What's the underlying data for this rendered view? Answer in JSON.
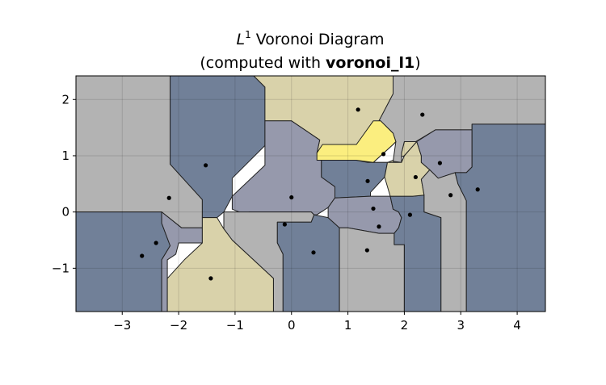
{
  "chart_data": {
    "type": "voronoi",
    "title": {
      "line1_italic": "L",
      "line1_sup": "1",
      "line1_rest": " Voronoi Diagram",
      "line2_prefix": "(computed with ",
      "line2_bold": "voronoi_l1",
      "line2_suffix": ")"
    },
    "xlim": [
      -3.82,
      4.5
    ],
    "ylim": [
      -1.77,
      2.42
    ],
    "xticks": [
      {
        "value": -3,
        "label": "−3"
      },
      {
        "value": -2,
        "label": "−2"
      },
      {
        "value": -1,
        "label": "−1"
      },
      {
        "value": 0,
        "label": "0"
      },
      {
        "value": 1,
        "label": "1"
      },
      {
        "value": 2,
        "label": "2"
      },
      {
        "value": 3,
        "label": "3"
      },
      {
        "value": 4,
        "label": "4"
      }
    ],
    "yticks": [
      {
        "value": -1,
        "label": "−1"
      },
      {
        "value": 0,
        "label": "0"
      },
      {
        "value": 1,
        "label": "1"
      },
      {
        "value": 2,
        "label": "2"
      }
    ],
    "grid": true,
    "colors": {
      "gray": "#b3b3b3",
      "dark_blue": "#718098",
      "slate": "#9699ac",
      "khaki": "#d9d2aa",
      "yellow": "#fbee7f",
      "edge": "#222222",
      "point": "#000000"
    },
    "sites": [
      {
        "x": 1.18,
        "y": 1.82
      },
      {
        "x": 2.32,
        "y": 1.73
      },
      {
        "x": 1.63,
        "y": 1.03
      },
      {
        "x": 2.63,
        "y": 0.87
      },
      {
        "x": 2.2,
        "y": 0.62
      },
      {
        "x": 3.3,
        "y": 0.4
      },
      {
        "x": 2.82,
        "y": 0.3
      },
      {
        "x": -1.52,
        "y": 0.83
      },
      {
        "x": -2.17,
        "y": 0.25
      },
      {
        "x": 0.0,
        "y": 0.26
      },
      {
        "x": 1.35,
        "y": 0.55
      },
      {
        "x": 1.45,
        "y": 0.06
      },
      {
        "x": 2.1,
        "y": -0.05
      },
      {
        "x": -0.12,
        "y": -0.22
      },
      {
        "x": 1.55,
        "y": -0.26
      },
      {
        "x": -2.4,
        "y": -0.55
      },
      {
        "x": -2.65,
        "y": -0.78
      },
      {
        "x": 0.39,
        "y": -0.72
      },
      {
        "x": 1.34,
        "y": -0.68
      },
      {
        "x": -1.43,
        "y": -1.18
      }
    ],
    "cells": [
      {
        "color": "gray",
        "polygon": [
          [
            -3.82,
            2.42
          ],
          [
            -2.15,
            2.42
          ],
          [
            -2.15,
            0.85
          ],
          [
            -1.58,
            0.22
          ],
          [
            -1.58,
            -0.28
          ],
          [
            -1.95,
            -0.28
          ],
          [
            -2.3,
            0.0
          ],
          [
            -3.82,
            0.0
          ]
        ]
      },
      {
        "color": "dark_blue",
        "polygon": [
          [
            -2.15,
            2.42
          ],
          [
            -0.67,
            2.42
          ],
          [
            -0.47,
            2.22
          ],
          [
            -0.47,
            1.18
          ],
          [
            -1.05,
            0.6
          ],
          [
            -1.05,
            0.28
          ],
          [
            -1.2,
            0.0
          ],
          [
            -1.32,
            -0.1
          ],
          [
            -1.58,
            -0.1
          ],
          [
            -1.58,
            0.22
          ],
          [
            -2.15,
            0.85
          ]
        ]
      },
      {
        "color": "khaki",
        "polygon": [
          [
            -0.67,
            2.42
          ],
          [
            1.8,
            2.42
          ],
          [
            1.8,
            2.1
          ],
          [
            1.55,
            1.62
          ],
          [
            1.58,
            1.62
          ],
          [
            1.8,
            1.4
          ],
          [
            1.85,
            1.25
          ],
          [
            1.8,
            1.2
          ],
          [
            1.45,
            0.88
          ],
          [
            1.65,
            0.88
          ],
          [
            1.95,
            0.88
          ],
          [
            1.95,
            1.05
          ],
          [
            2.0,
            1.25
          ],
          [
            2.22,
            1.25
          ],
          [
            2.0,
            1.0
          ],
          [
            1.7,
            0.88
          ],
          [
            1.35,
            0.88
          ],
          [
            1.15,
            0.92
          ],
          [
            0.45,
            0.92
          ],
          [
            0.45,
            1.05
          ],
          [
            0.5,
            1.28
          ],
          [
            0.0,
            1.62
          ],
          [
            -0.47,
            1.62
          ],
          [
            -0.47,
            2.22
          ]
        ]
      },
      {
        "color": "gray",
        "polygon": [
          [
            1.8,
            2.42
          ],
          [
            4.5,
            2.42
          ],
          [
            4.5,
            1.56
          ],
          [
            3.2,
            1.56
          ],
          [
            3.2,
            1.46
          ],
          [
            2.55,
            1.46
          ],
          [
            2.2,
            1.25
          ],
          [
            2.0,
            1.25
          ],
          [
            1.95,
            1.05
          ],
          [
            1.95,
            0.88
          ],
          [
            1.8,
            0.9
          ],
          [
            1.85,
            1.25
          ],
          [
            1.8,
            1.4
          ],
          [
            1.58,
            1.62
          ],
          [
            1.55,
            1.62
          ],
          [
            1.8,
            2.1
          ]
        ]
      },
      {
        "color": "dark_blue",
        "polygon": [
          [
            -3.82,
            0.0
          ],
          [
            -2.3,
            0.0
          ],
          [
            -2.3,
            -0.2
          ],
          [
            -2.15,
            -0.6
          ],
          [
            -2.3,
            -0.85
          ],
          [
            -2.3,
            -1.77
          ],
          [
            -3.82,
            -1.77
          ]
        ]
      },
      {
        "color": "slate",
        "polygon": [
          [
            -2.3,
            0.0
          ],
          [
            -1.95,
            -0.28
          ],
          [
            -1.58,
            -0.28
          ],
          [
            -1.58,
            -0.55
          ],
          [
            -2.0,
            -0.55
          ],
          [
            -2.05,
            -0.75
          ],
          [
            -2.2,
            -0.85
          ],
          [
            -2.2,
            -1.77
          ],
          [
            -2.3,
            -1.77
          ],
          [
            -2.3,
            -0.85
          ],
          [
            -2.15,
            -0.6
          ],
          [
            -2.3,
            -0.2
          ]
        ]
      },
      {
        "color": "slate",
        "polygon": [
          [
            -0.47,
            1.62
          ],
          [
            0.0,
            1.62
          ],
          [
            0.5,
            1.28
          ],
          [
            0.45,
            1.05
          ],
          [
            0.53,
            0.95
          ],
          [
            0.53,
            0.62
          ],
          [
            0.77,
            0.45
          ],
          [
            0.77,
            0.25
          ],
          [
            0.65,
            0.08
          ],
          [
            0.45,
            -0.05
          ],
          [
            0.4,
            -0.05
          ],
          [
            0.35,
            0.0
          ],
          [
            -0.75,
            0.0
          ],
          [
            -0.8,
            -0.05
          ],
          [
            -1.05,
            0.05
          ],
          [
            -1.05,
            0.28
          ],
          [
            -0.47,
            0.83
          ]
        ]
      },
      {
        "color": "gray",
        "polygon": [
          [
            -1.2,
            0.0
          ],
          [
            -0.75,
            0.0
          ],
          [
            0.35,
            0.0
          ],
          [
            0.4,
            -0.05
          ],
          [
            0.35,
            -0.18
          ],
          [
            -0.25,
            -0.18
          ],
          [
            -0.25,
            -0.55
          ],
          [
            -0.15,
            -0.75
          ],
          [
            -0.15,
            -1.77
          ],
          [
            -0.32,
            -1.77
          ],
          [
            -0.32,
            -1.18
          ],
          [
            -0.6,
            -0.92
          ],
          [
            -1.05,
            -0.5
          ],
          [
            -1.2,
            -0.3
          ]
        ]
      },
      {
        "color": "khaki",
        "polygon": [
          [
            -1.58,
            -0.1
          ],
          [
            -1.32,
            -0.1
          ],
          [
            -1.2,
            -0.3
          ],
          [
            -1.05,
            -0.5
          ],
          [
            -0.6,
            -0.92
          ],
          [
            -0.32,
            -1.18
          ],
          [
            -0.32,
            -1.77
          ],
          [
            -2.2,
            -1.77
          ],
          [
            -2.2,
            -1.18
          ],
          [
            -1.9,
            -0.85
          ],
          [
            -1.58,
            -0.55
          ]
        ]
      },
      {
        "color": "dark_blue",
        "polygon": [
          [
            0.4,
            -0.05
          ],
          [
            0.65,
            -0.1
          ],
          [
            0.85,
            -0.28
          ],
          [
            0.85,
            -1.77
          ],
          [
            -0.15,
            -1.77
          ],
          [
            -0.15,
            -0.75
          ],
          [
            -0.25,
            -0.55
          ],
          [
            -0.25,
            -0.18
          ],
          [
            0.35,
            -0.18
          ]
        ]
      },
      {
        "color": "dark_blue",
        "polygon": [
          [
            0.53,
            0.95
          ],
          [
            1.15,
            0.92
          ],
          [
            1.35,
            0.88
          ],
          [
            1.7,
            0.88
          ],
          [
            1.65,
            0.62
          ],
          [
            1.4,
            0.35
          ],
          [
            1.4,
            0.28
          ],
          [
            0.77,
            0.25
          ],
          [
            0.77,
            0.45
          ],
          [
            0.53,
            0.62
          ]
        ]
      },
      {
        "color": "yellow",
        "polygon": [
          [
            0.45,
            1.05
          ],
          [
            0.45,
            0.92
          ],
          [
            1.15,
            0.92
          ],
          [
            1.45,
            0.88
          ],
          [
            1.8,
            1.2
          ],
          [
            1.85,
            1.25
          ],
          [
            1.8,
            1.4
          ],
          [
            1.58,
            1.62
          ],
          [
            1.45,
            1.62
          ],
          [
            1.15,
            1.2
          ],
          [
            0.55,
            1.2
          ]
        ]
      },
      {
        "color": "slate",
        "polygon": [
          [
            0.65,
            0.08
          ],
          [
            0.77,
            0.25
          ],
          [
            1.4,
            0.28
          ],
          [
            1.75,
            0.28
          ],
          [
            1.8,
            0.05
          ],
          [
            1.9,
            0.0
          ],
          [
            1.95,
            -0.1
          ],
          [
            1.9,
            -0.28
          ],
          [
            1.82,
            -0.38
          ],
          [
            1.55,
            -0.38
          ],
          [
            1.0,
            -0.28
          ],
          [
            0.85,
            -0.28
          ],
          [
            0.65,
            -0.1
          ]
        ]
      },
      {
        "color": "gray",
        "polygon": [
          [
            0.85,
            -0.28
          ],
          [
            1.0,
            -0.28
          ],
          [
            1.55,
            -0.38
          ],
          [
            1.82,
            -0.38
          ],
          [
            1.82,
            -0.58
          ],
          [
            2.0,
            -0.58
          ],
          [
            2.0,
            -1.77
          ],
          [
            0.85,
            -1.77
          ]
        ]
      },
      {
        "color": "dark_blue",
        "polygon": [
          [
            1.75,
            0.28
          ],
          [
            2.15,
            0.28
          ],
          [
            2.35,
            0.3
          ],
          [
            2.35,
            0.0
          ],
          [
            2.65,
            -0.1
          ],
          [
            2.65,
            -1.77
          ],
          [
            2.0,
            -1.77
          ],
          [
            2.0,
            -0.58
          ],
          [
            1.82,
            -0.58
          ],
          [
            1.82,
            -0.38
          ],
          [
            1.9,
            -0.28
          ],
          [
            1.95,
            -0.1
          ],
          [
            1.9,
            0.0
          ],
          [
            1.8,
            0.05
          ]
        ]
      },
      {
        "color": "khaki",
        "polygon": [
          [
            1.7,
            0.88
          ],
          [
            1.95,
            0.88
          ],
          [
            2.0,
            1.0
          ],
          [
            2.22,
            1.25
          ],
          [
            2.3,
            1.0
          ],
          [
            2.3,
            0.88
          ],
          [
            2.45,
            0.75
          ],
          [
            2.3,
            0.58
          ],
          [
            2.35,
            0.3
          ],
          [
            2.15,
            0.28
          ],
          [
            1.75,
            0.28
          ],
          [
            1.65,
            0.62
          ]
        ]
      },
      {
        "color": "slate",
        "polygon": [
          [
            2.22,
            1.25
          ],
          [
            2.55,
            1.46
          ],
          [
            3.2,
            1.46
          ],
          [
            3.2,
            0.8
          ],
          [
            3.1,
            0.7
          ],
          [
            2.9,
            0.7
          ],
          [
            2.6,
            0.6
          ],
          [
            2.45,
            0.75
          ],
          [
            2.3,
            0.88
          ],
          [
            2.3,
            1.0
          ]
        ]
      },
      {
        "color": "gray",
        "polygon": [
          [
            2.35,
            0.3
          ],
          [
            2.3,
            0.58
          ],
          [
            2.45,
            0.75
          ],
          [
            2.6,
            0.6
          ],
          [
            2.9,
            0.7
          ],
          [
            2.95,
            0.5
          ],
          [
            3.1,
            0.2
          ],
          [
            3.1,
            -1.77
          ],
          [
            2.65,
            -1.77
          ],
          [
            2.65,
            -0.1
          ],
          [
            2.35,
            0.0
          ]
        ]
      },
      {
        "color": "dark_blue",
        "polygon": [
          [
            3.2,
            1.56
          ],
          [
            4.5,
            1.56
          ],
          [
            4.5,
            -1.77
          ],
          [
            3.1,
            -1.77
          ],
          [
            3.1,
            0.2
          ],
          [
            2.95,
            0.5
          ],
          [
            2.9,
            0.7
          ],
          [
            3.1,
            0.7
          ],
          [
            3.2,
            0.8
          ]
        ]
      }
    ]
  }
}
